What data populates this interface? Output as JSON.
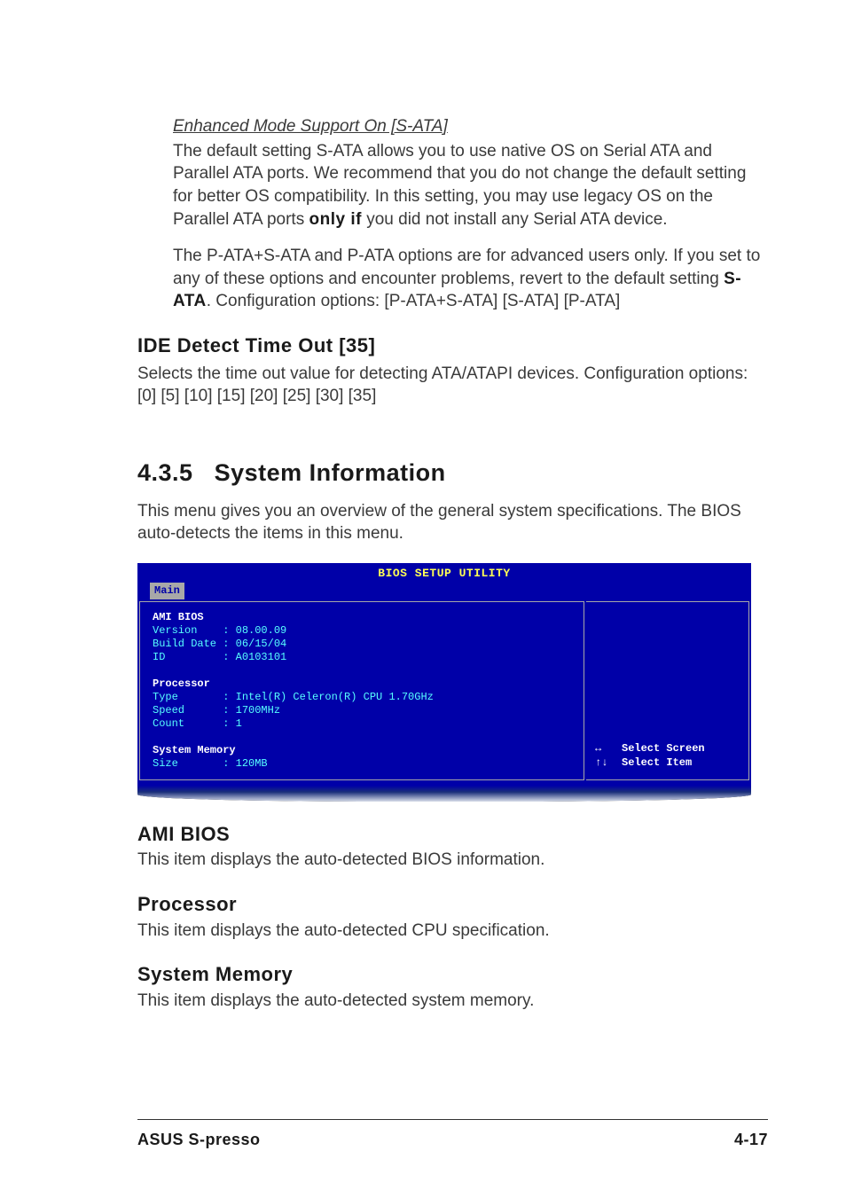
{
  "indent": {
    "subhead": "Enhanced Mode Support On [S-ATA]",
    "p1a": "The default setting S-ATA allows you to use native OS on Serial ATA and Parallel ATA ports. We recommend that you do not change the default setting for better OS compatibility. In this setting, you may use legacy OS on the Parallel ATA ports ",
    "only_if": "only if",
    "p1b": " you did not install any Serial ATA device.",
    "p2a": "The P-ATA+S-ATA and P-ATA options are for advanced users only. If you set to any of these options and encounter problems, revert to the default setting ",
    "sata": "S-ATA",
    "p2b": ". Configuration options: [P-ATA+S-ATA] [S-ATA] [P-ATA]"
  },
  "ide": {
    "heading": "IDE Detect Time Out [35]",
    "text": "Selects the time out value for detecting ATA/ATAPI devices. Configuration options: [0] [5] [10] [15] [20] [25] [30] [35]"
  },
  "sec435": {
    "num": "4.3.5",
    "title": "System Information",
    "text": "This menu gives you an overview of the general system specifications. The BIOS auto-detects the items in this menu."
  },
  "bios": {
    "title": "BIOS SETUP UTILITY",
    "tab": "Main",
    "left": {
      "l1": "AMI BIOS",
      "l2": "Version    : 08.00.09",
      "l3": "Build Date : 06/15/04",
      "l4": "ID         : A0103101",
      "l5": "Processor",
      "l6": "Type       : Intel(R) Celeron(R) CPU 1.70GHz",
      "l7": "Speed      : 1700MHz",
      "l8": "Count      : 1",
      "l9": "System Memory",
      "l10": "Size       : 120MB"
    },
    "nav": {
      "k1": "↔",
      "v1": "Select Screen",
      "k2": "↑↓",
      "v2": "Select Item"
    }
  },
  "ami": {
    "heading": "AMI BIOS",
    "text": "This item displays the auto-detected BIOS information."
  },
  "proc": {
    "heading": "Processor",
    "text": "This item displays the auto-detected CPU specification."
  },
  "mem": {
    "heading": "System Memory",
    "text": "This item displays the auto-detected system memory."
  },
  "footer": {
    "left": "ASUS S-presso",
    "right": "4-17"
  }
}
